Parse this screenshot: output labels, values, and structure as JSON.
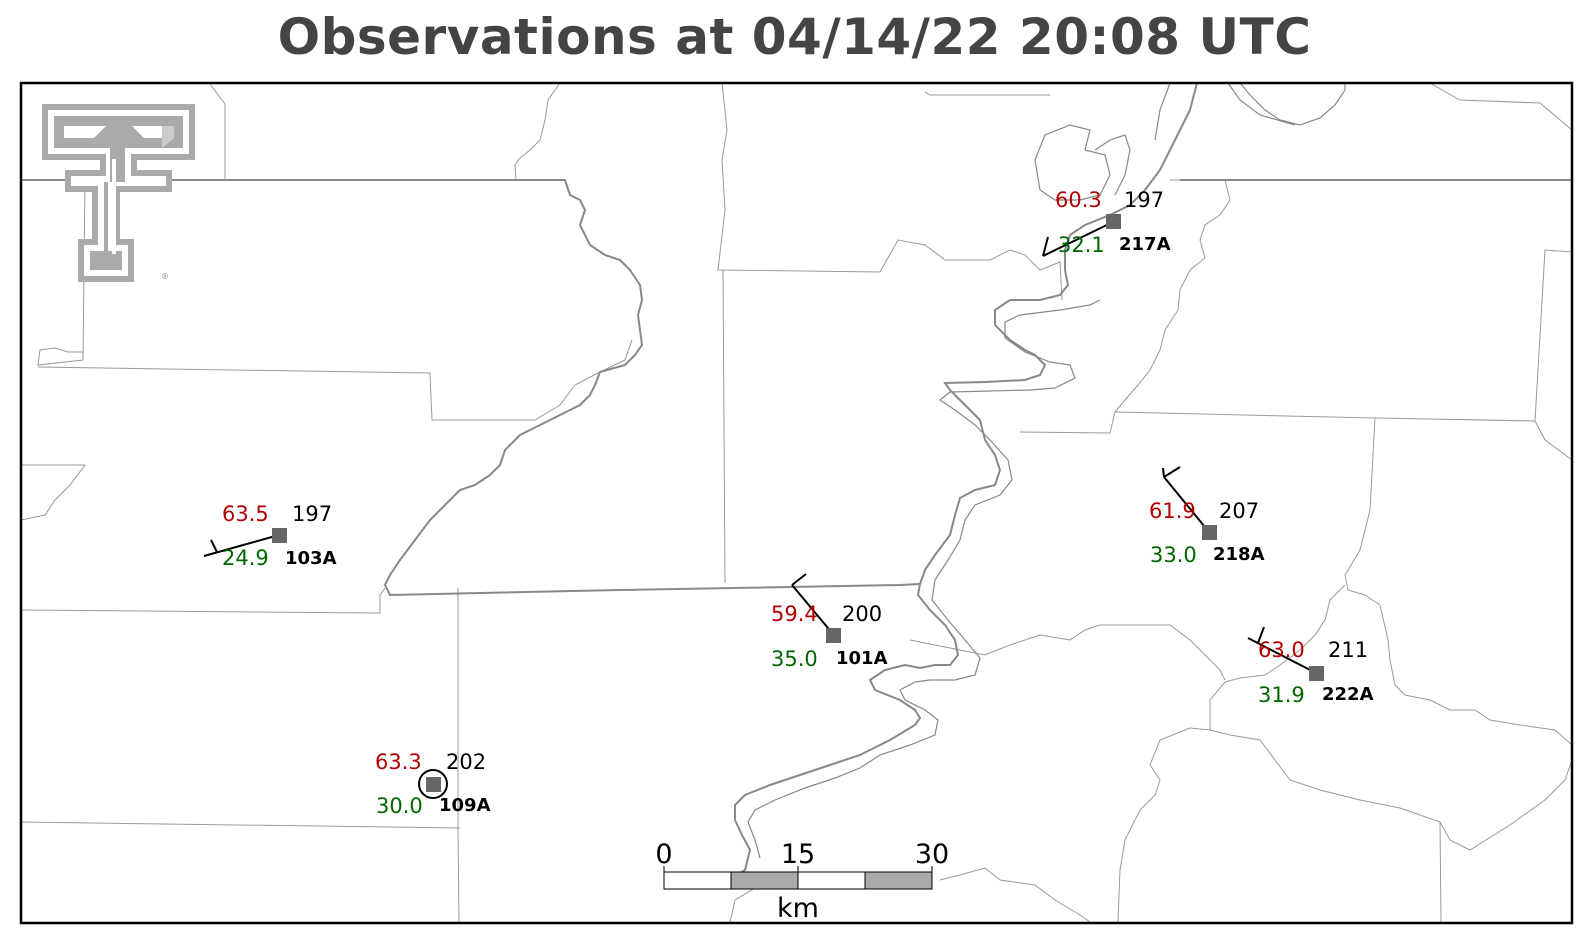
{
  "title": "Observations at 04/14/22 20:08 UTC",
  "colors": {
    "temperature": "#b30000",
    "dewpoint": "#006600",
    "pressure": "#000000",
    "station_marker": "#666666",
    "logo": "#aaaaaa",
    "boundaries": "#999999"
  },
  "logo": {
    "icon": "texas-tech-double-t-logo",
    "mark": "®"
  },
  "stations": [
    {
      "id": "217A",
      "temp": "60.3",
      "dew": "32.1",
      "pres": "197",
      "wind": "barb-one-full"
    },
    {
      "id": "103A",
      "temp": "63.5",
      "dew": "24.9",
      "pres": "197",
      "wind": "barb-one-half"
    },
    {
      "id": "218A",
      "temp": "61.9",
      "dew": "33.0",
      "pres": "207",
      "wind": "barb-one-full"
    },
    {
      "id": "101A",
      "temp": "59.4",
      "dew": "35.0",
      "pres": "200",
      "wind": "barb-one-full"
    },
    {
      "id": "222A",
      "temp": "63.0",
      "dew": "31.9",
      "pres": "211",
      "wind": "barb-one-full"
    },
    {
      "id": "109A",
      "temp": "63.3",
      "dew": "30.0",
      "pres": "202",
      "wind": "calm"
    }
  ],
  "scale_bar": {
    "ticks": [
      "0",
      "15",
      "30"
    ],
    "unit": "km"
  }
}
